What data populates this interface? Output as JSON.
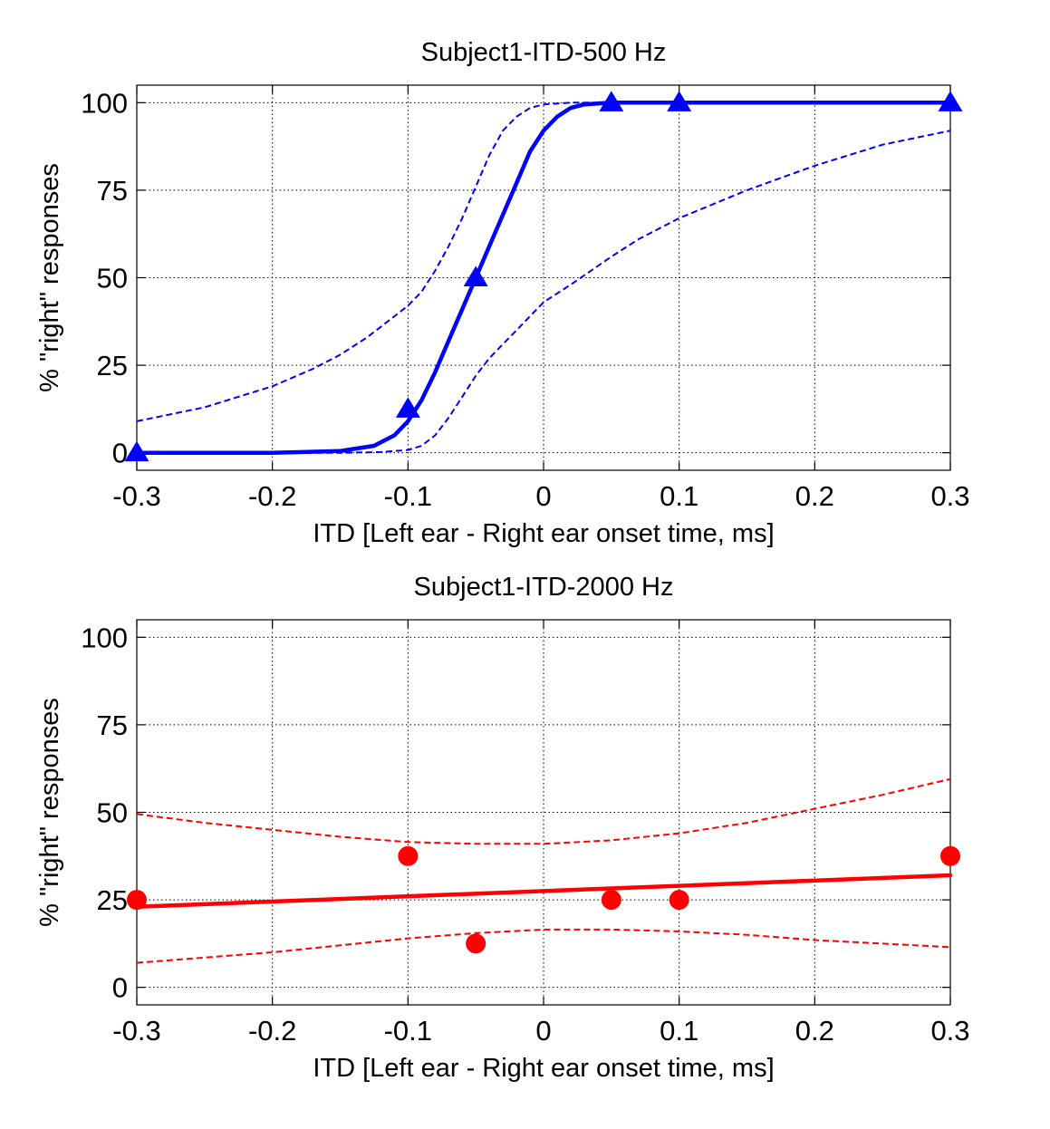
{
  "chart_data": [
    {
      "type": "scatter",
      "title": "Subject1-ITD-500 Hz",
      "xlabel": "ITD [Left ear - Right ear onset time, ms]",
      "ylabel": "% \"right\" responses",
      "xlim": [
        -0.3,
        0.3
      ],
      "ylim": [
        -5,
        105
      ],
      "xticks": [
        -0.3,
        -0.2,
        -0.1,
        0,
        0.1,
        0.2,
        0.3
      ],
      "xtick_labels": [
        "-0.3",
        "-0.2",
        "-0.1",
        "0",
        "0.1",
        "0.2",
        "0.3"
      ],
      "yticks": [
        0,
        25,
        50,
        75,
        100
      ],
      "ytick_labels": [
        "0",
        "25",
        "50",
        "75",
        "100"
      ],
      "grid": true,
      "color": "#0000ff",
      "marker": "triangle",
      "points": {
        "x": [
          -0.3,
          -0.1,
          -0.05,
          0.05,
          0.1,
          0.3
        ],
        "y": [
          0,
          12.5,
          50,
          100,
          100,
          100
        ]
      },
      "fit": {
        "x": [
          -0.3,
          -0.2,
          -0.15,
          -0.125,
          -0.11,
          -0.1,
          -0.09,
          -0.08,
          -0.07,
          -0.06,
          -0.05,
          -0.04,
          -0.03,
          -0.02,
          -0.01,
          0,
          0.01,
          0.02,
          0.03,
          0.05,
          0.1,
          0.2,
          0.3
        ],
        "y": [
          0,
          0,
          0.5,
          2,
          5,
          9,
          15,
          23,
          32,
          41,
          50,
          59,
          68,
          77,
          86,
          92,
          96,
          98.5,
          99.5,
          100,
          100,
          100,
          100
        ]
      },
      "ci_upper": {
        "x": [
          -0.3,
          -0.25,
          -0.2,
          -0.17,
          -0.15,
          -0.13,
          -0.11,
          -0.1,
          -0.09,
          -0.08,
          -0.07,
          -0.06,
          -0.05,
          -0.04,
          -0.03,
          -0.02,
          -0.01,
          0,
          0.02,
          0.05,
          0.1,
          0.2,
          0.3
        ],
        "y": [
          9,
          13,
          19,
          24,
          28,
          33,
          39,
          42,
          46,
          52,
          59,
          67,
          76,
          85,
          92,
          96,
          98.5,
          99.5,
          100,
          100,
          100,
          100,
          100
        ]
      },
      "ci_lower": {
        "x": [
          -0.3,
          -0.2,
          -0.15,
          -0.12,
          -0.1,
          -0.09,
          -0.08,
          -0.07,
          -0.06,
          -0.05,
          -0.04,
          -0.03,
          -0.02,
          -0.01,
          0,
          0.02,
          0.05,
          0.07,
          0.1,
          0.15,
          0.2,
          0.25,
          0.3
        ],
        "y": [
          0,
          0,
          0,
          0.2,
          0.8,
          2,
          5,
          10,
          16,
          22,
          27,
          31,
          35,
          39,
          43,
          48,
          56,
          61,
          67,
          75,
          82,
          88,
          92
        ]
      }
    },
    {
      "type": "scatter",
      "title": "Subject1-ITD-2000 Hz",
      "xlabel": "ITD [Left ear - Right ear onset time, ms]",
      "ylabel": "% \"right\" responses",
      "xlim": [
        -0.3,
        0.3
      ],
      "ylim": [
        -5,
        105
      ],
      "xticks": [
        -0.3,
        -0.2,
        -0.1,
        0,
        0.1,
        0.2,
        0.3
      ],
      "xtick_labels": [
        "-0.3",
        "-0.2",
        "-0.1",
        "0",
        "0.1",
        "0.2",
        "0.3"
      ],
      "yticks": [
        0,
        25,
        50,
        75,
        100
      ],
      "ytick_labels": [
        "0",
        "25",
        "50",
        "75",
        "100"
      ],
      "grid": true,
      "color": "#ff0000",
      "marker": "circle",
      "points": {
        "x": [
          -0.3,
          -0.1,
          -0.05,
          0.05,
          0.1,
          0.3
        ],
        "y": [
          25,
          37.5,
          12.5,
          25,
          25,
          37.5
        ]
      },
      "fit": {
        "x": [
          -0.3,
          0.3
        ],
        "y": [
          23,
          32
        ]
      },
      "ci_upper": {
        "x": [
          -0.3,
          -0.25,
          -0.2,
          -0.15,
          -0.1,
          -0.05,
          0,
          0.05,
          0.1,
          0.15,
          0.2,
          0.25,
          0.3
        ],
        "y": [
          49.5,
          47,
          45,
          43,
          41.5,
          41,
          41,
          42,
          44,
          47,
          51,
          55,
          59.5
        ]
      },
      "ci_lower": {
        "x": [
          -0.3,
          -0.25,
          -0.2,
          -0.15,
          -0.1,
          -0.05,
          0,
          0.05,
          0.1,
          0.15,
          0.2,
          0.25,
          0.3
        ],
        "y": [
          7,
          8.5,
          10,
          12,
          14,
          15.5,
          16.5,
          16.5,
          16,
          15,
          13.5,
          12.5,
          11.5
        ]
      }
    }
  ]
}
